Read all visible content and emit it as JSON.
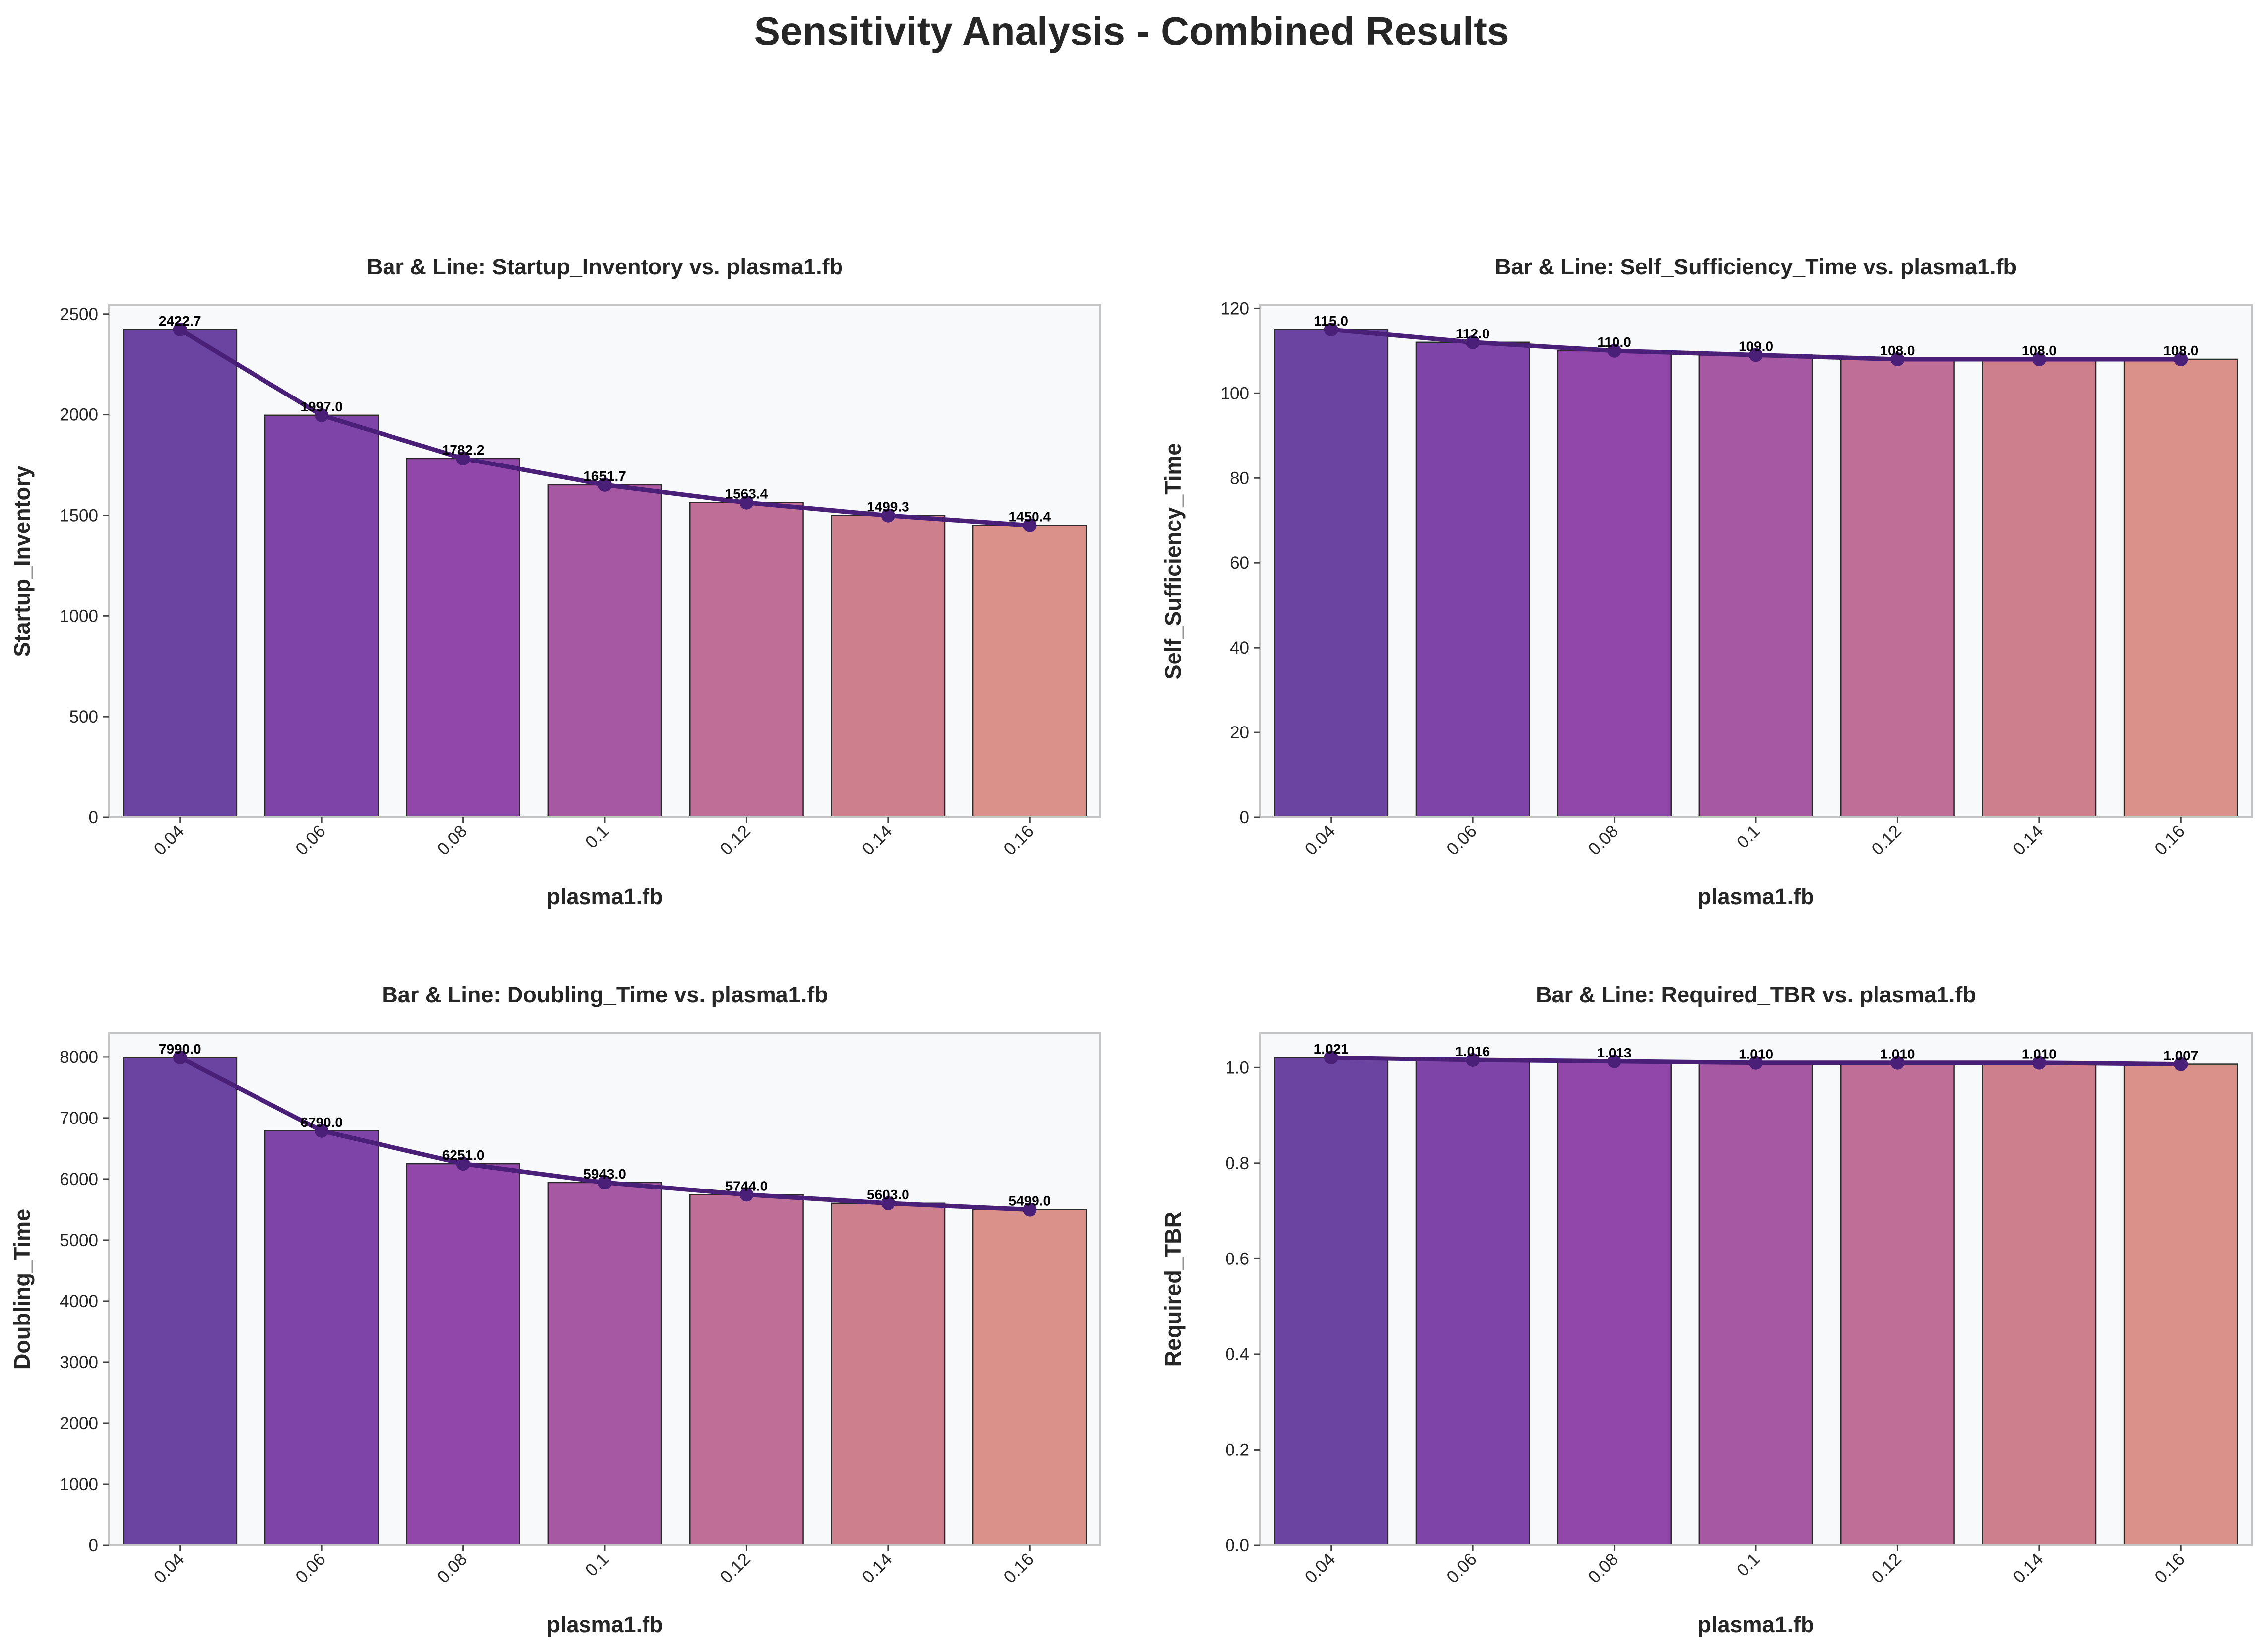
{
  "suptitle": "Sensitivity Analysis - Combined Results",
  "colors": {
    "bars": [
      "#6a44a0",
      "#7f44a8",
      "#9147aa",
      "#a758a2",
      "#bf6f97",
      "#ce7f8e",
      "#d9918a"
    ],
    "line": "#4a1f78",
    "plot_bg": "#f8f9fa",
    "frame": "#c4c4c4"
  },
  "chart_data": [
    {
      "type": "bar",
      "title": "Bar & Line: Startup_Inventory vs. plasma1.fb",
      "xlabel": "plasma1.fb",
      "ylabel": "Startup_Inventory",
      "categories": [
        "0.04",
        "0.06",
        "0.08",
        "0.1",
        "0.12",
        "0.14",
        "0.16"
      ],
      "values": [
        2422.7,
        1997.0,
        1782.2,
        1651.7,
        1563.4,
        1499.3,
        1450.4
      ],
      "labels": [
        "2422.7",
        "1997.0",
        "1782.2",
        "1651.7",
        "1563.4",
        "1499.3",
        "1450.4"
      ],
      "yticks": [
        0,
        500,
        1000,
        1500,
        2000,
        2500
      ],
      "ylim": [
        0,
        2543.8
      ],
      "grid": false,
      "line_overlay": true
    },
    {
      "type": "bar",
      "title": "Bar & Line: Self_Sufficiency_Time vs. plasma1.fb",
      "xlabel": "plasma1.fb",
      "ylabel": "Self_Sufficiency_Time",
      "categories": [
        "0.04",
        "0.06",
        "0.08",
        "0.1",
        "0.12",
        "0.14",
        "0.16"
      ],
      "values": [
        115.0,
        112.0,
        110.0,
        109.0,
        108.0,
        108.0,
        108.0
      ],
      "labels": [
        "115.0",
        "112.0",
        "110.0",
        "109.0",
        "108.0",
        "108.0",
        "108.0"
      ],
      "yticks": [
        0,
        20,
        40,
        60,
        80,
        100,
        120
      ],
      "ylim": [
        0,
        120.75
      ],
      "grid": false,
      "line_overlay": true
    },
    {
      "type": "bar",
      "title": "Bar & Line: Doubling_Time vs. plasma1.fb",
      "xlabel": "plasma1.fb",
      "ylabel": "Doubling_Time",
      "categories": [
        "0.04",
        "0.06",
        "0.08",
        "0.1",
        "0.12",
        "0.14",
        "0.16"
      ],
      "values": [
        7990.0,
        6790.0,
        6251.0,
        5943.0,
        5744.0,
        5603.0,
        5499.0
      ],
      "labels": [
        "7990.0",
        "6790.0",
        "6251.0",
        "5943.0",
        "5744.0",
        "5603.0",
        "5499.0"
      ],
      "yticks": [
        0,
        1000,
        2000,
        3000,
        4000,
        5000,
        6000,
        7000,
        8000
      ],
      "ylim": [
        0,
        8389.5
      ],
      "grid": false,
      "line_overlay": true
    },
    {
      "type": "bar",
      "title": "Bar & Line: Required_TBR vs. plasma1.fb",
      "xlabel": "plasma1.fb",
      "ylabel": "Required_TBR",
      "categories": [
        "0.04",
        "0.06",
        "0.08",
        "0.1",
        "0.12",
        "0.14",
        "0.16"
      ],
      "values": [
        1.021,
        1.016,
        1.013,
        1.01,
        1.01,
        1.01,
        1.007
      ],
      "labels": [
        "1.021",
        "1.016",
        "1.013",
        "1.010",
        "1.010",
        "1.010",
        "1.007"
      ],
      "yticks": [
        "0.0",
        "0.2",
        "0.4",
        "0.6",
        "0.8",
        "1.0"
      ],
      "ylim": [
        0,
        1.072
      ],
      "grid": false,
      "line_overlay": true
    }
  ]
}
